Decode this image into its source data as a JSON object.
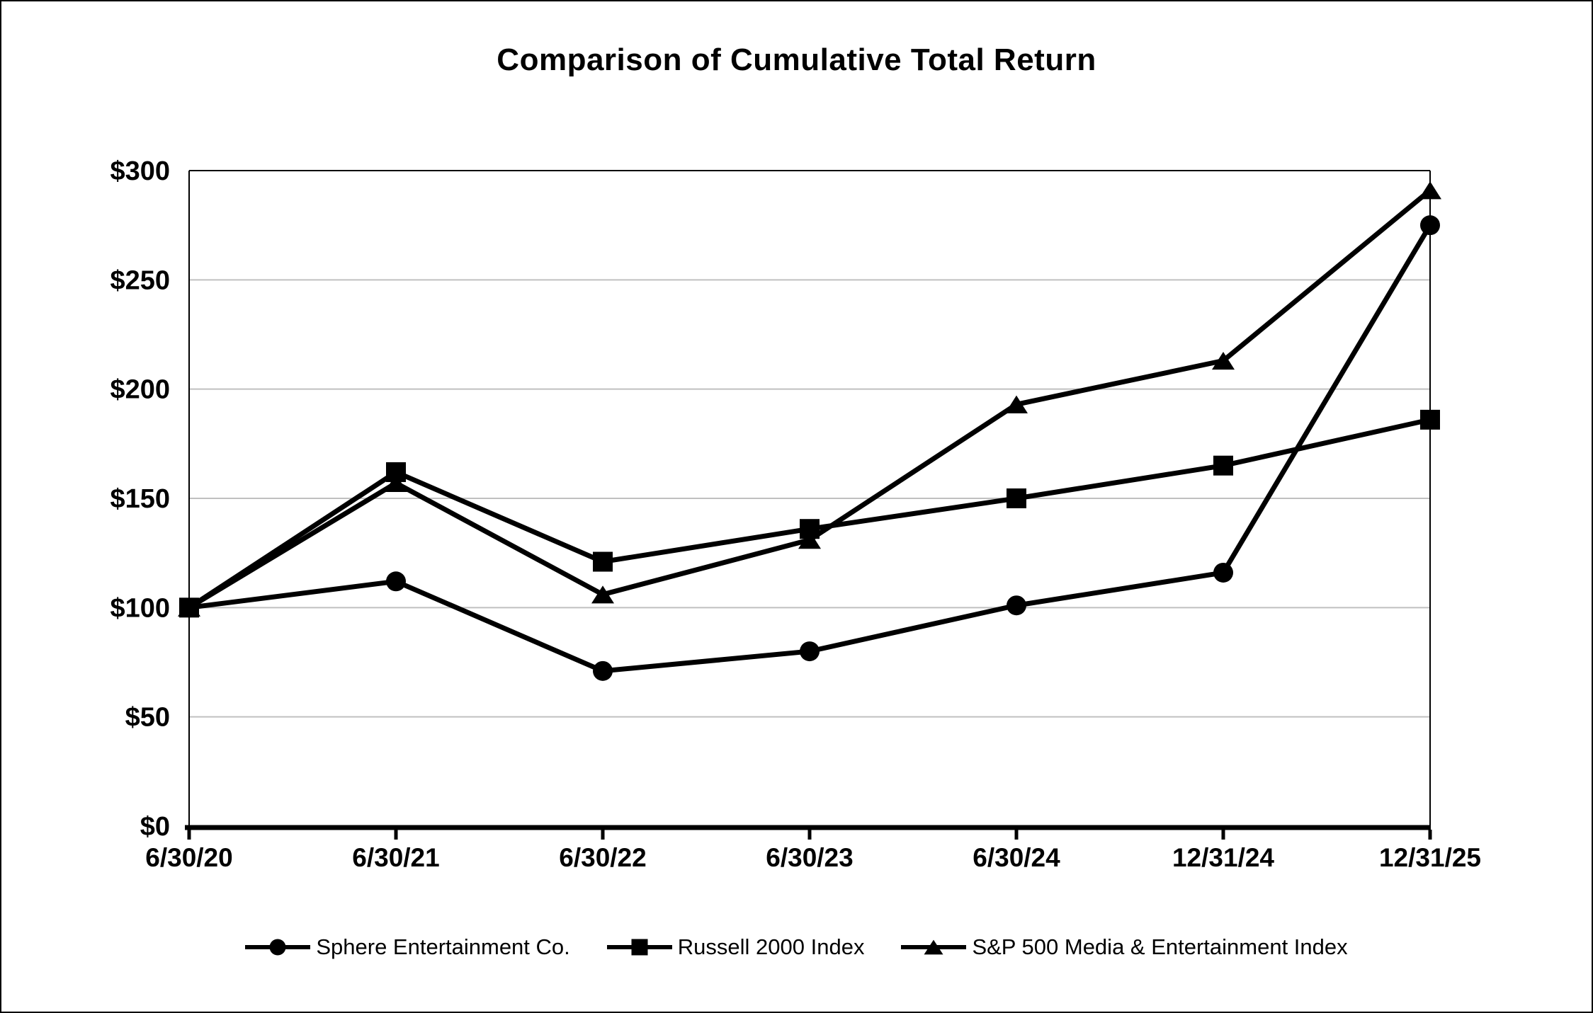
{
  "title": "Comparison of Cumulative Total Return",
  "chart_data": {
    "type": "line",
    "title": "Comparison of Cumulative Total Return",
    "categories": [
      "6/30/20",
      "6/30/21",
      "6/30/22",
      "6/30/23",
      "6/30/24",
      "12/31/24",
      "12/31/25"
    ],
    "series": [
      {
        "name": "Sphere Entertainment Co.",
        "marker": "circle",
        "values": [
          100,
          112,
          71,
          80,
          101,
          116,
          275
        ]
      },
      {
        "name": "Russell 2000 Index",
        "marker": "square",
        "values": [
          100,
          162,
          121,
          136,
          150,
          165,
          186
        ]
      },
      {
        "name": "S&P 500 Media & Entertainment Index",
        "marker": "triangle",
        "values": [
          100,
          157,
          106,
          131,
          193,
          213,
          291
        ]
      }
    ],
    "xlabel": "",
    "ylabel": "",
    "ylim": [
      0,
      300
    ],
    "ytick_step": 50,
    "y_tick_labels": [
      "$0",
      "$50",
      "$100",
      "$150",
      "$200",
      "$250",
      "$300"
    ],
    "grid": true,
    "legend_position": "bottom",
    "colors": {
      "line": "#000000",
      "grid": "#c0c0c0",
      "axis": "#000000",
      "background": "#ffffff",
      "text": "#000000"
    }
  }
}
